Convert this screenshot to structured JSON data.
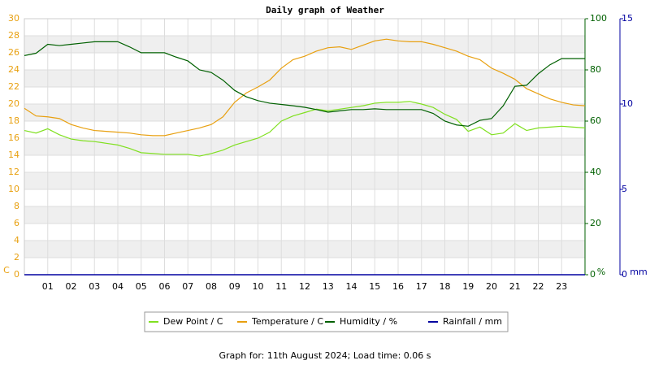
{
  "chart_data": {
    "type": "line",
    "title": "Daily graph of Weather",
    "footer": "Graph for: 11th August 2024; Load time: 0.06 s",
    "ylabel": "C",
    "y2label": "%",
    "y3label": "mm",
    "x": [
      0,
      0.5,
      1,
      1.5,
      2,
      2.5,
      3,
      3.5,
      4,
      4.5,
      5,
      5.5,
      6,
      6.5,
      7,
      7.5,
      8,
      8.5,
      9,
      9.5,
      10,
      10.5,
      11,
      11.5,
      12,
      12.5,
      13,
      13.5,
      14,
      14.5,
      15,
      15.5,
      16,
      16.5,
      17,
      17.5,
      18,
      18.5,
      19,
      19.5,
      20,
      20.5,
      21,
      21.5,
      22,
      22.5,
      23,
      23.5,
      24
    ],
    "xlim": [
      0,
      24
    ],
    "xticks": [
      {
        "value": 1,
        "label": "01"
      },
      {
        "value": 2,
        "label": "02"
      },
      {
        "value": 3,
        "label": "03"
      },
      {
        "value": 4,
        "label": "04"
      },
      {
        "value": 5,
        "label": "05"
      },
      {
        "value": 6,
        "label": "06"
      },
      {
        "value": 7,
        "label": "07"
      },
      {
        "value": 8,
        "label": "08"
      },
      {
        "value": 9,
        "label": "09"
      },
      {
        "value": 10,
        "label": "10"
      },
      {
        "value": 11,
        "label": "11"
      },
      {
        "value": 12,
        "label": "12"
      },
      {
        "value": 13,
        "label": "13"
      },
      {
        "value": 14,
        "label": "14"
      },
      {
        "value": 15,
        "label": "15"
      },
      {
        "value": 16,
        "label": "16"
      },
      {
        "value": 17,
        "label": "17"
      },
      {
        "value": 18,
        "label": "18"
      },
      {
        "value": 19,
        "label": "19"
      },
      {
        "value": 20,
        "label": "20"
      },
      {
        "value": 21,
        "label": "21"
      },
      {
        "value": 22,
        "label": "22"
      },
      {
        "value": 23,
        "label": "23"
      }
    ],
    "ylim": [
      0,
      30
    ],
    "yticks": [
      0,
      2,
      4,
      6,
      8,
      10,
      12,
      14,
      16,
      18,
      20,
      22,
      24,
      26,
      28,
      30
    ],
    "y2lim": [
      0,
      100
    ],
    "y2ticks": [
      0,
      20,
      40,
      60,
      80,
      100
    ],
    "y3lim": [
      0,
      15
    ],
    "y3ticks": [
      0,
      5,
      10,
      15
    ],
    "grid": true,
    "series": [
      {
        "name": "Dew Point / C",
        "color": "#80e020",
        "values": [
          16.9,
          16.6,
          17.1,
          16.4,
          15.9,
          15.7,
          15.6,
          15.4,
          15.2,
          14.8,
          14.3,
          14.2,
          14.1,
          14.1,
          14.1,
          13.9,
          14.2,
          14.6,
          15.2,
          15.6,
          16.0,
          16.7,
          18.0,
          18.6,
          19.0,
          19.4,
          19.2,
          19.4,
          19.6,
          19.8,
          20.1,
          20.2,
          20.2,
          20.3,
          20.0,
          19.6,
          18.8,
          18.2,
          16.8,
          17.3,
          16.4,
          16.6,
          17.7,
          16.9,
          17.2,
          17.3,
          17.4,
          17.3,
          17.2
        ]
      },
      {
        "name": "Temperature / C",
        "color": "#e8a010",
        "values": [
          19.5,
          18.6,
          18.5,
          18.3,
          17.6,
          17.2,
          16.9,
          16.8,
          16.7,
          16.6,
          16.4,
          16.3,
          16.3,
          16.6,
          16.9,
          17.2,
          17.6,
          18.5,
          20.2,
          21.3,
          22.0,
          22.8,
          24.2,
          25.2,
          25.6,
          26.2,
          26.6,
          26.7,
          26.4,
          26.9,
          27.4,
          27.6,
          27.4,
          27.3,
          27.3,
          27.0,
          26.6,
          26.2,
          25.6,
          25.2,
          24.2,
          23.6,
          22.9,
          21.8,
          21.2,
          20.6,
          20.2,
          19.9,
          19.8
        ]
      },
      {
        "name": "Humidity / %",
        "color": "#006000",
        "axis": "y2",
        "values": [
          85.6,
          86.5,
          90,
          89.5,
          90,
          90.5,
          91,
          91,
          91,
          89,
          86.7,
          86.7,
          86.7,
          85,
          83.5,
          80,
          79,
          76,
          72,
          69.5,
          68,
          67,
          66.5,
          66,
          65.4,
          64.5,
          63.5,
          64,
          64.5,
          64.5,
          64.8,
          64.5,
          64.5,
          64.5,
          64.5,
          63,
          60,
          58.5,
          58,
          60.3,
          61,
          66,
          73.6,
          74,
          78.5,
          82,
          84.4,
          84.4,
          84.4
        ]
      },
      {
        "name": "Rainfall / mm",
        "color": "#0000a0",
        "axis": "y3",
        "values": [
          0,
          0,
          0,
          0,
          0,
          0,
          0,
          0,
          0,
          0,
          0,
          0,
          0,
          0,
          0,
          0,
          0,
          0,
          0,
          0,
          0,
          0,
          0,
          0,
          0,
          0,
          0,
          0,
          0,
          0,
          0,
          0,
          0,
          0,
          0,
          0,
          0,
          0,
          0,
          0,
          0,
          0,
          0,
          0,
          0,
          0,
          0,
          0,
          0
        ]
      }
    ]
  }
}
